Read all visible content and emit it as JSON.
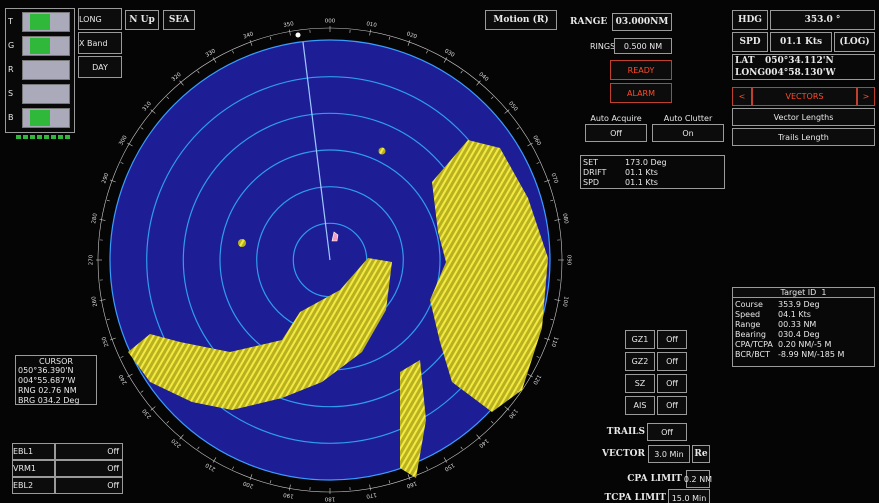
{
  "indicators": [
    "T",
    "G",
    "R",
    "S",
    "B"
  ],
  "mode": {
    "range_scale": "LONG",
    "band": "X Band",
    "palette": "DAY",
    "orientation": "N Up",
    "clutter": "SEA",
    "motion": "Motion (R)"
  },
  "range": {
    "label": "RANGE",
    "value": "03.000NM"
  },
  "rings": {
    "label": "RINGS",
    "value": "0.500 NM"
  },
  "status": {
    "ready": "READY",
    "alarm": "ALARM"
  },
  "auto": {
    "acquire_label": "Auto Acquire",
    "acquire_value": "Off",
    "clutter_label": "Auto Clutter",
    "clutter_value": "On"
  },
  "set_drift": [
    [
      "SET",
      "173.0 Deg"
    ],
    [
      "DRIFT",
      "01.1 Kts"
    ],
    [
      "SPD",
      "01.1 Kts"
    ]
  ],
  "nav": {
    "hdg_label": "HDG",
    "hdg_value": "353.0 °",
    "spd_label": "SPD",
    "spd_value": "01.1 Kts",
    "spd_source": "(LOG)",
    "lat_label": "LAT",
    "lat_value": "050°34.112'N",
    "long_label": "LONG",
    "long_value": "004°58.130'W"
  },
  "vectors": {
    "prev": "<",
    "title": "VECTORS",
    "next": ">",
    "items": [
      "Vector Lengths",
      "Trails Length"
    ]
  },
  "target": {
    "title": "Target ID  1",
    "rows": [
      [
        "Course",
        "353.9 Deg"
      ],
      [
        "Speed",
        "04.1 Kts"
      ],
      [
        "Range",
        "00.33 NM"
      ],
      [
        "Bearing",
        "030.4 Deg"
      ],
      [
        "CPA/TCPA",
        "0.20 NM/-5 M"
      ],
      [
        "BCR/BCT",
        "-8.99 NM/-185 M"
      ]
    ]
  },
  "cursor": {
    "title": "CURSOR",
    "lines": [
      "050°36.390'N",
      "004°55.687'W",
      "RNG 02.76 NM",
      "BRG 034.2 Deg"
    ]
  },
  "ebl_vrm": [
    [
      "EBL1",
      "Off"
    ],
    [
      "VRM1",
      "Off"
    ],
    [
      "EBL2",
      "Off"
    ]
  ],
  "zones": [
    [
      "GZ1",
      "Off"
    ],
    [
      "GZ2",
      "Off"
    ],
    [
      "SZ",
      "Off"
    ],
    [
      "AIS",
      "Off"
    ]
  ],
  "limits": [
    [
      "TRAILS",
      "Off"
    ],
    [
      "VECTOR",
      "3.0 Min"
    ],
    [
      "CPA LIMIT",
      "0.2 NM"
    ],
    [
      "TCPA LIMIT",
      "15.0 Min"
    ]
  ],
  "vector_mode": "Re",
  "bearing_scale": [
    "000",
    "010",
    "020",
    "030",
    "040",
    "050",
    "060",
    "070",
    "080",
    "090",
    "100",
    "110",
    "120",
    "130",
    "140",
    "150",
    "160",
    "170",
    "180",
    "190",
    "200",
    "210",
    "220",
    "230",
    "240",
    "250",
    "260",
    "270",
    "280",
    "290",
    "300",
    "310",
    "320",
    "330",
    "340",
    "350"
  ]
}
